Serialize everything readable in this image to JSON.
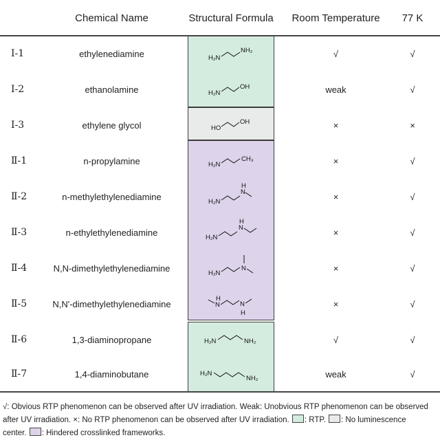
{
  "header": {
    "chemical_name": "Chemical Name",
    "structural_formula": "Structural Formula",
    "room_temperature": "Room Temperature",
    "k77": "77 K"
  },
  "rows": [
    {
      "id": "Ⅰ-1",
      "name": "ethylenediamine",
      "rt": "√",
      "k77": "√"
    },
    {
      "id": "Ⅰ-2",
      "name": "ethanolamine",
      "rt": "weak",
      "k77": "√"
    },
    {
      "id": "Ⅰ-3",
      "name": "ethylene glycol",
      "rt": "×",
      "k77": "×"
    },
    {
      "id": "Ⅱ-1",
      "name": "n-propylamine",
      "rt": "×",
      "k77": "√"
    },
    {
      "id": "Ⅱ-2",
      "name": "n-methylethylenediamine",
      "rt": "×",
      "k77": "√"
    },
    {
      "id": "Ⅱ-3",
      "name": "n-ethylethylenediamine",
      "rt": "×",
      "k77": "√"
    },
    {
      "id": "Ⅱ-4",
      "name": "N,N-dimethylethylenediamine",
      "rt": "×",
      "k77": "√"
    },
    {
      "id": "Ⅱ-5",
      "name": "N,N'-dimethylethylenediamine",
      "rt": "×",
      "k77": "√"
    },
    {
      "id": "Ⅱ-6",
      "name": "1,3-diaminopropane",
      "rt": "√",
      "k77": "√"
    },
    {
      "id": "Ⅱ-7",
      "name": "1,4-diaminobutane",
      "rt": "weak",
      "k77": "√"
    }
  ],
  "groups": {
    "rtp": "#d4ecdf",
    "no_luminescence": "#e8ebea",
    "hindered": "#ddd3ea"
  },
  "formula_labels": {
    "h2n": "H₂N",
    "nh2": "NH₂",
    "oh": "OH",
    "ho": "HO",
    "ch3": "CH₃",
    "n": "N",
    "h": "H"
  },
  "footnote": {
    "line1": "√: Obvious RTP phenomenon can be observed after UV irradiation. Weak: Unobvious RTP phenomenon can be observed",
    "line2a": "after UV irradiation. ×: No RTP phenomenon can be observed after UV irradiation.",
    "rtp_label": ": RTP.",
    "no_lum_label": ": No luminescence",
    "line3a": "center.",
    "hindered_label": ": Hindered crosslinked frameworks."
  }
}
